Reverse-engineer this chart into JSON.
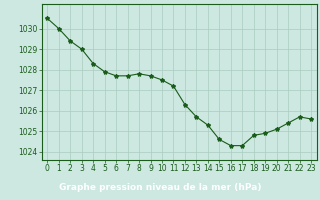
{
  "x": [
    0,
    1,
    2,
    3,
    4,
    5,
    6,
    7,
    8,
    9,
    10,
    11,
    12,
    13,
    14,
    15,
    16,
    17,
    18,
    19,
    20,
    21,
    22,
    23
  ],
  "y": [
    1030.5,
    1030.0,
    1029.4,
    1029.0,
    1028.3,
    1027.9,
    1027.7,
    1027.7,
    1027.8,
    1027.7,
    1027.5,
    1027.2,
    1026.3,
    1025.7,
    1025.3,
    1024.6,
    1024.3,
    1024.3,
    1024.8,
    1024.9,
    1025.1,
    1025.4,
    1025.7,
    1025.6
  ],
  "line_color": "#1a5c1a",
  "marker": "*",
  "marker_size": 3,
  "background_color": "#cce8e0",
  "grid_color": "#aaccbf",
  "tick_color": "#1a5c1a",
  "axis_color": "#1a5c1a",
  "xlabel": "Graphe pression niveau de la mer (hPa)",
  "xlabel_color": "#ffffff",
  "xlabel_bg": "#2d6e2d",
  "ylim": [
    1023.6,
    1031.2
  ],
  "xlim": [
    -0.5,
    23.5
  ],
  "yticks": [
    1024,
    1025,
    1026,
    1027,
    1028,
    1029,
    1030
  ],
  "xticks": [
    0,
    1,
    2,
    3,
    4,
    5,
    6,
    7,
    8,
    9,
    10,
    11,
    12,
    13,
    14,
    15,
    16,
    17,
    18,
    19,
    20,
    21,
    22,
    23
  ],
  "xlabel_fontsize": 6.5,
  "tick_fontsize": 5.5,
  "bottom_bar_height": 0.13
}
